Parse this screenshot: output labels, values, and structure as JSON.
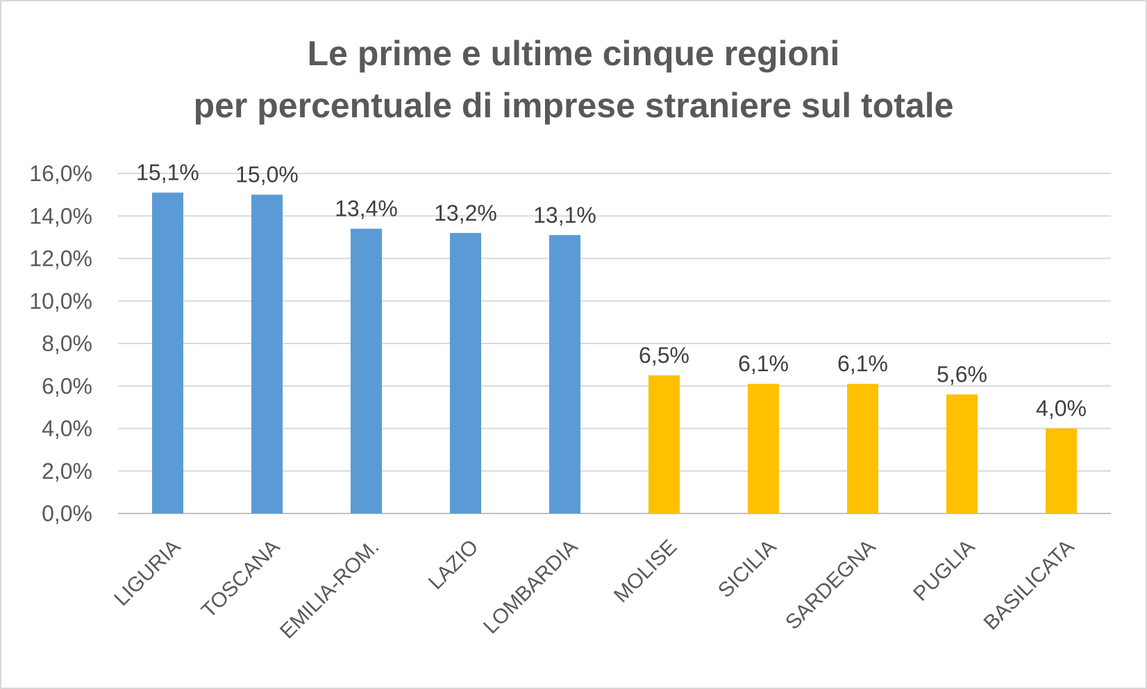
{
  "chart_data": {
    "type": "bar",
    "title_lines": [
      "Le prime e ultime cinque regioni",
      "per percentuale di imprese straniere sul totale"
    ],
    "categories": [
      "LIGURIA",
      "TOSCANA",
      "EMILIA-ROM.",
      "LAZIO",
      "LOMBARDIA",
      "MOLISE",
      "SICILIA",
      "SARDEGNA",
      "PUGLIA",
      "BASILICATA"
    ],
    "values": [
      15.1,
      15.0,
      13.4,
      13.2,
      13.1,
      6.5,
      6.1,
      6.1,
      5.6,
      4.0
    ],
    "data_labels": [
      "15,1%",
      "15,0%",
      "13,4%",
      "13,2%",
      "13,1%",
      "6,5%",
      "6,1%",
      "6,1%",
      "5,6%",
      "4,0%"
    ],
    "bar_colors": [
      "#5b9bd5",
      "#5b9bd5",
      "#5b9bd5",
      "#5b9bd5",
      "#5b9bd5",
      "#ffc000",
      "#ffc000",
      "#ffc000",
      "#ffc000",
      "#ffc000"
    ],
    "ylim": [
      0,
      16
    ],
    "y_ticks": [
      0,
      2,
      4,
      6,
      8,
      10,
      12,
      14,
      16
    ],
    "y_tick_labels": [
      "0,0%",
      "2,0%",
      "4,0%",
      "6,0%",
      "8,0%",
      "10,0%",
      "12,0%",
      "14,0%",
      "16,0%"
    ],
    "grid": true,
    "legend": "none",
    "colors": {
      "gridline": "#d9d9d9",
      "axis": "#bfbfbf",
      "text": "#595959"
    }
  }
}
